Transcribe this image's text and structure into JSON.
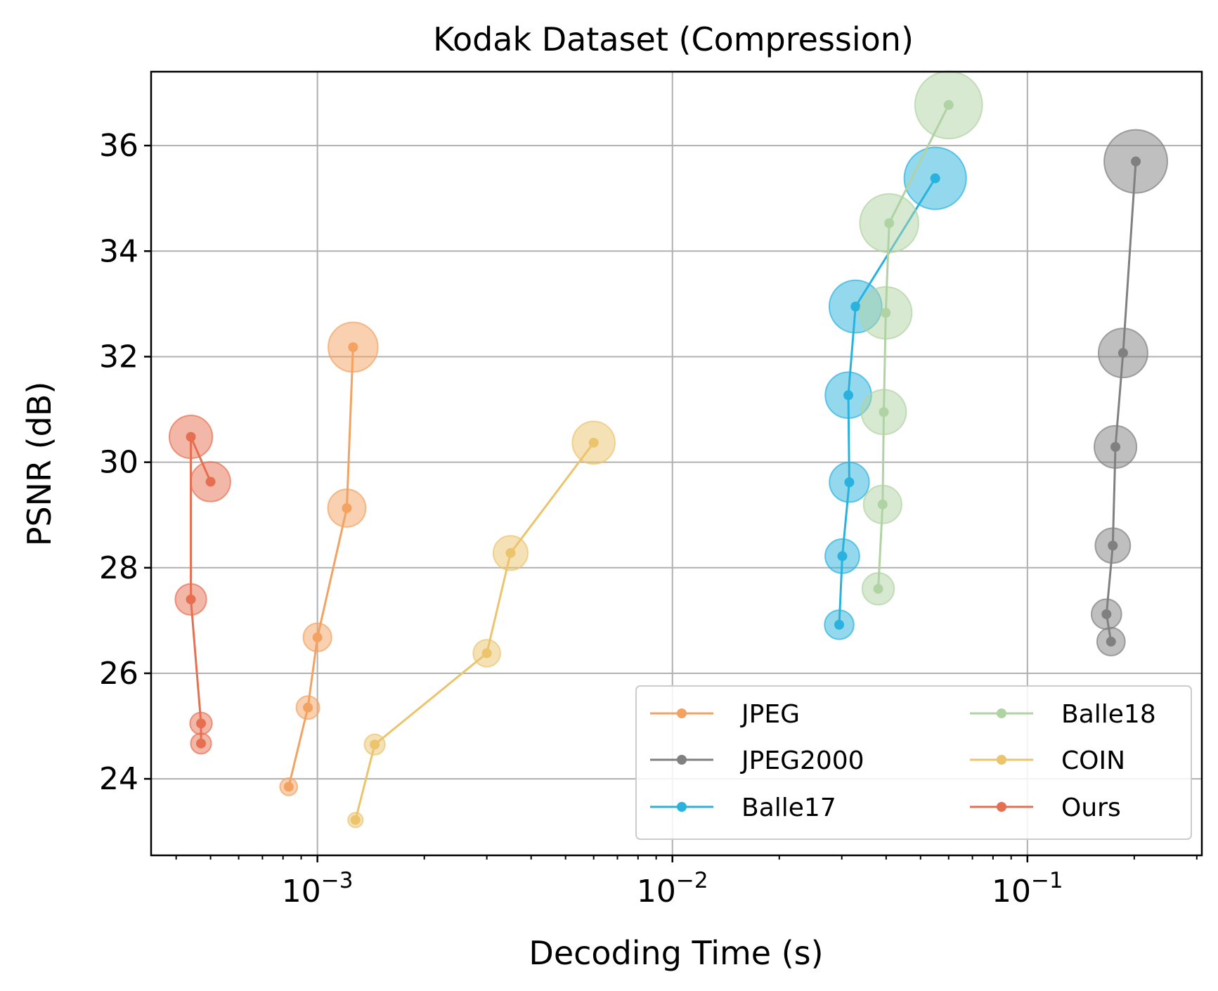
{
  "chart_data": {
    "type": "scatter",
    "title": "Kodak Dataset (Compression)",
    "xlabel": "Decoding Time (s)",
    "ylabel": "PSNR (dB)",
    "xscale": "log",
    "xlim": [
      0.00034,
      0.31
    ],
    "ylim": [
      22.55,
      37.4
    ],
    "xticks": [
      {
        "value": 0.001,
        "base": "10",
        "exp": "−3"
      },
      {
        "value": 0.01,
        "base": "10",
        "exp": "−2"
      },
      {
        "value": 0.1,
        "base": "10",
        "exp": "−1"
      }
    ],
    "yticks": [
      24,
      26,
      28,
      30,
      32,
      34,
      36
    ],
    "grid": true,
    "legend_position": "lower-right",
    "marker_size_encoding": "bubble radius grows with PSNR",
    "series": [
      {
        "name": "JPEG",
        "color": "#f4a261",
        "x": [
          0.00083,
          0.00094,
          0.001,
          0.00121,
          0.00126
        ],
        "y": [
          23.85,
          25.35,
          26.68,
          29.13,
          32.18
        ]
      },
      {
        "name": "JPEG2000",
        "color": "#808080",
        "x": [
          0.172,
          0.167,
          0.174,
          0.177,
          0.186,
          0.202
        ],
        "y": [
          26.6,
          27.12,
          28.42,
          30.29,
          32.07,
          35.7
        ]
      },
      {
        "name": "Balle17",
        "color": "#29b2de",
        "x": [
          0.0295,
          0.0301,
          0.0315,
          0.0313,
          0.0328,
          0.055
        ],
        "y": [
          26.92,
          28.22,
          29.62,
          31.27,
          32.95,
          35.38
        ]
      },
      {
        "name": "Balle18",
        "color": "#b0d3a3",
        "x": [
          0.038,
          0.0391,
          0.0394,
          0.0399,
          0.0408,
          0.06
        ],
        "y": [
          27.6,
          29.2,
          30.95,
          32.83,
          34.53,
          36.77
        ]
      },
      {
        "name": "COIN",
        "color": "#ebc46d",
        "x": [
          0.00128,
          0.00145,
          0.003,
          0.0035,
          0.006
        ],
        "y": [
          23.22,
          24.65,
          26.38,
          28.28,
          30.37
        ]
      },
      {
        "name": "Ours",
        "color": "#e76f51",
        "x": [
          0.00047,
          0.00047,
          0.00044,
          0.00044,
          0.0005
        ],
        "y": [
          24.67,
          25.05,
          27.4,
          30.48,
          29.63
        ]
      }
    ]
  }
}
